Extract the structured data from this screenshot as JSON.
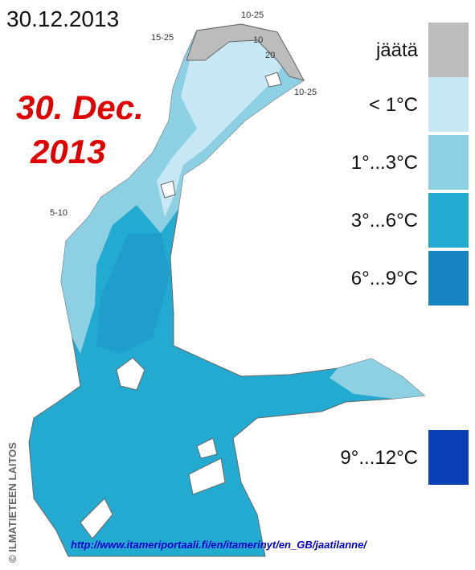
{
  "header": {
    "date": "30.12.2013"
  },
  "overlay": {
    "lines": [
      "30. Dec.",
      "2013"
    ]
  },
  "ice_labels": [
    "10-25",
    "15-25",
    "10",
    "20",
    "10-25",
    "5-10"
  ],
  "legend": {
    "items": [
      {
        "label": "jäätä",
        "color": "#bcbcbc"
      },
      {
        "label": "<  1°C",
        "color": "#c6e7f3"
      },
      {
        "label": "1°...3°C",
        "color": "#8dd0e4"
      },
      {
        "label": "3°...6°C",
        "color": "#23aad0"
      },
      {
        "label": "6°...9°C",
        "color": "#1483bf"
      },
      {
        "label": "9°...12°C",
        "color": "#0a3fb5"
      }
    ]
  },
  "credit": "© ILMATIETEEN LAITOS",
  "url": "http://www.itameriportaali.fi/en/itamerinyt/en_GB/jaatilanne/"
}
